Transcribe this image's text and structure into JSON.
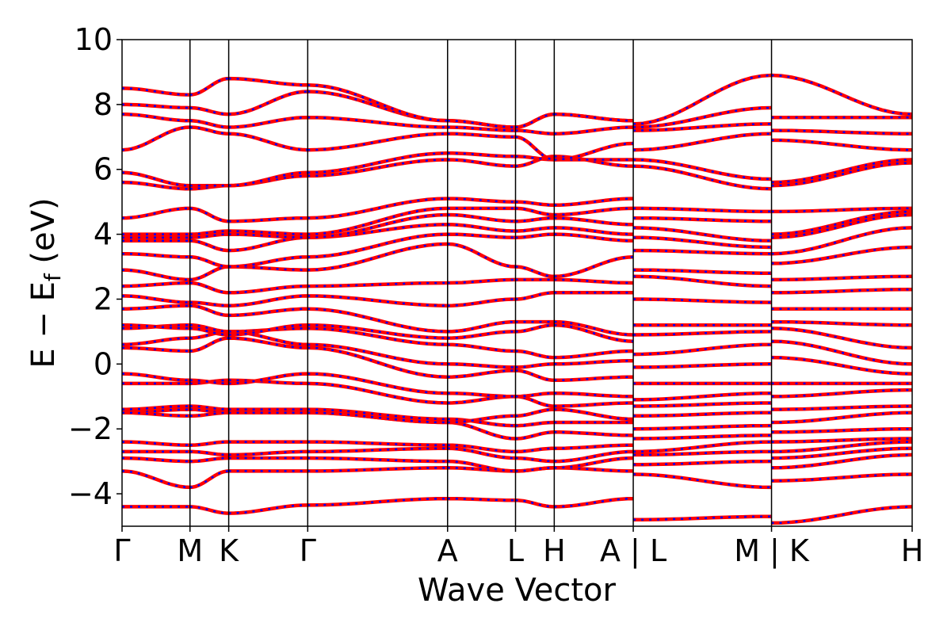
{
  "chart_data": {
    "type": "line",
    "title": "",
    "xlabel": "Wave Vector",
    "ylabel": "E − E_f (eV)",
    "ylabel_parts": {
      "prefix": "E − E",
      "subscript": "f",
      "suffix": " (eV)"
    },
    "ylim": [
      -5,
      10
    ],
    "yticks": [
      -4,
      -2,
      0,
      2,
      4,
      6,
      8,
      10
    ],
    "ytick_labels": [
      "−4",
      "−2",
      "0",
      "2",
      "4",
      "6",
      "8",
      "10"
    ],
    "grid": false,
    "legend": "none",
    "colors": {
      "spin_up": "#ff0000",
      "spin_down": "#0000ff",
      "frame": "#000000"
    },
    "k_path": {
      "positions": [
        0,
        0.86,
        1.35,
        2.35,
        4.12,
        4.98,
        5.47,
        6.47,
        8.22,
        10.0
      ],
      "labels": [
        "Γ",
        "M",
        "K",
        "Γ",
        "A",
        "L",
        "H",
        "A | L",
        "M | K",
        "H"
      ],
      "discontinuities": [
        6.47,
        8.22
      ]
    },
    "segments": [
      "Γ-M",
      "M-K",
      "K-Γ",
      "Γ-A",
      "A-L",
      "L-H",
      "H-A",
      "L-M",
      "K-H"
    ],
    "series": [
      {
        "name": "",
        "values": [
          [
            -4.4,
            -4.4
          ],
          [
            -4.4,
            -4.6
          ],
          [
            -4.6,
            -4.35
          ],
          [
            -4.35,
            -4.15
          ],
          [
            -4.15,
            -4.2
          ],
          [
            -4.2,
            -4.4
          ],
          [
            -4.4,
            -4.15
          ],
          [
            -4.8,
            -4.7
          ],
          [
            -4.9,
            -4.4
          ]
        ]
      },
      {
        "name": "",
        "values": [
          [
            -3.3,
            -3.8
          ],
          [
            -3.8,
            -3.3
          ],
          [
            -3.3,
            -3.3
          ],
          [
            -3.3,
            -3.2
          ],
          [
            -3.2,
            -3.3
          ],
          [
            -3.3,
            -3.2
          ],
          [
            -3.2,
            -3.3
          ],
          [
            -3.4,
            -3.8
          ],
          [
            -3.6,
            -3.4
          ]
        ]
      },
      {
        "name": "",
        "values": [
          [
            -2.9,
            -3.0
          ],
          [
            -3.0,
            -2.9
          ],
          [
            -2.9,
            -2.9
          ],
          [
            -2.9,
            -3.0
          ],
          [
            -3.0,
            -3.3
          ],
          [
            -3.3,
            -3.2
          ],
          [
            -3.2,
            -2.9
          ],
          [
            -3.1,
            -3.0
          ],
          [
            -3.2,
            -2.8
          ]
        ]
      },
      {
        "name": "",
        "values": [
          [
            -2.7,
            -2.7
          ],
          [
            -2.7,
            -2.8
          ],
          [
            -2.8,
            -2.7
          ],
          [
            -2.7,
            -2.6
          ],
          [
            -2.6,
            -2.9
          ],
          [
            -2.9,
            -3.0
          ],
          [
            -3.0,
            -2.7
          ],
          [
            -2.8,
            -2.7
          ],
          [
            -2.9,
            -2.6
          ]
        ]
      },
      {
        "name": "",
        "values": [
          [
            -2.4,
            -2.5
          ],
          [
            -2.5,
            -2.4
          ],
          [
            -2.4,
            -2.4
          ],
          [
            -2.4,
            -2.5
          ],
          [
            -2.5,
            -2.7
          ],
          [
            -2.7,
            -2.6
          ],
          [
            -2.6,
            -2.5
          ],
          [
            -2.7,
            -2.4
          ],
          [
            -2.7,
            -2.4
          ]
        ]
      },
      {
        "name": "",
        "values": [
          [
            -1.5,
            -1.4
          ],
          [
            -1.4,
            -1.5
          ],
          [
            -1.5,
            -1.5
          ],
          [
            -1.5,
            -1.8
          ],
          [
            -1.8,
            -2.3
          ],
          [
            -2.3,
            -2.1
          ],
          [
            -2.1,
            -2.2
          ],
          [
            -2.3,
            -2.2
          ],
          [
            -2.4,
            -2.3
          ]
        ]
      },
      {
        "name": "",
        "values": [
          [
            -1.4,
            -1.3
          ],
          [
            -1.3,
            -1.4
          ],
          [
            -1.4,
            -1.4
          ],
          [
            -1.4,
            -1.7
          ],
          [
            -1.7,
            -1.9
          ],
          [
            -1.9,
            -1.8
          ],
          [
            -1.8,
            -1.8
          ],
          [
            -2.0,
            -1.9
          ],
          [
            -2.1,
            -2.0
          ]
        ]
      },
      {
        "name": "",
        "values": [
          [
            -1.5,
            -1.6
          ],
          [
            -1.6,
            -1.5
          ],
          [
            -1.5,
            -1.5
          ],
          [
            -1.5,
            -1.8
          ],
          [
            -1.8,
            -1.6
          ],
          [
            -1.6,
            -1.4
          ],
          [
            -1.4,
            -1.7
          ],
          [
            -1.6,
            -1.5
          ],
          [
            -1.8,
            -1.5
          ]
        ]
      },
      {
        "name": "",
        "values": [
          [
            -0.6,
            -0.6
          ],
          [
            -0.6,
            -0.5
          ],
          [
            -0.5,
            -0.6
          ],
          [
            -0.6,
            -1.2
          ],
          [
            -1.2,
            -1.0
          ],
          [
            -1.0,
            -1.3
          ],
          [
            -1.3,
            -1.2
          ],
          [
            -1.3,
            -1.2
          ],
          [
            -1.4,
            -1.3
          ]
        ]
      },
      {
        "name": "",
        "values": [
          [
            -0.3,
            -0.5
          ],
          [
            -0.5,
            -0.6
          ],
          [
            -0.6,
            -0.3
          ],
          [
            -0.3,
            -0.9
          ],
          [
            -0.9,
            -1.0
          ],
          [
            -1.0,
            -0.9
          ],
          [
            -0.9,
            -1.0
          ],
          [
            -1.1,
            -0.9
          ],
          [
            -1.0,
            -0.8
          ]
        ]
      },
      {
        "name": "",
        "values": [
          [
            0.5,
            0.4
          ],
          [
            0.4,
            0.8
          ],
          [
            0.8,
            0.5
          ],
          [
            0.5,
            -0.4
          ],
          [
            -0.4,
            -0.2
          ],
          [
            -0.2,
            -0.5
          ],
          [
            -0.5,
            -0.4
          ],
          [
            -0.6,
            -0.6
          ],
          [
            -0.6,
            -0.6
          ]
        ]
      },
      {
        "name": "",
        "values": [
          [
            0.6,
            0.8
          ],
          [
            0.8,
            1.0
          ],
          [
            1.0,
            0.6
          ],
          [
            0.6,
            0.0
          ],
          [
            0.0,
            -0.1
          ],
          [
            -0.1,
            0.0
          ],
          [
            0.0,
            0.1
          ],
          [
            -0.1,
            0.0
          ],
          [
            0.2,
            -0.3
          ]
        ]
      },
      {
        "name": "",
        "values": [
          [
            1.1,
            1.2
          ],
          [
            1.2,
            1.0
          ],
          [
            1.0,
            1.1
          ],
          [
            1.1,
            0.6
          ],
          [
            0.6,
            0.4
          ],
          [
            0.4,
            0.2
          ],
          [
            0.2,
            0.4
          ],
          [
            0.3,
            0.6
          ],
          [
            0.7,
            0.0
          ]
        ]
      },
      {
        "name": "",
        "values": [
          [
            1.2,
            1.1
          ],
          [
            1.1,
            0.9
          ],
          [
            0.9,
            1.2
          ],
          [
            1.2,
            0.8
          ],
          [
            0.8,
            1.0
          ],
          [
            1.0,
            1.2
          ],
          [
            1.2,
            0.7
          ],
          [
            0.9,
            1.0
          ],
          [
            1.1,
            0.5
          ]
        ]
      },
      {
        "name": "",
        "values": [
          [
            1.7,
            1.8
          ],
          [
            1.8,
            1.5
          ],
          [
            1.5,
            1.7
          ],
          [
            1.7,
            1.0
          ],
          [
            1.0,
            1.3
          ],
          [
            1.3,
            1.3
          ],
          [
            1.3,
            0.9
          ],
          [
            1.2,
            1.2
          ],
          [
            1.3,
            1.2
          ]
        ]
      },
      {
        "name": "",
        "values": [
          [
            2.1,
            1.9
          ],
          [
            1.9,
            1.8
          ],
          [
            1.8,
            2.1
          ],
          [
            2.1,
            1.8
          ],
          [
            1.8,
            2.0
          ],
          [
            2.0,
            2.2
          ],
          [
            2.2,
            2.2
          ],
          [
            2.0,
            1.9
          ],
          [
            1.7,
            1.7
          ]
        ]
      },
      {
        "name": "",
        "values": [
          [
            2.4,
            2.5
          ],
          [
            2.5,
            2.2
          ],
          [
            2.2,
            2.4
          ],
          [
            2.4,
            2.5
          ],
          [
            2.5,
            2.6
          ],
          [
            2.6,
            2.6
          ],
          [
            2.6,
            2.5
          ],
          [
            2.7,
            2.4
          ],
          [
            2.2,
            2.3
          ]
        ]
      },
      {
        "name": "",
        "values": [
          [
            2.9,
            2.6
          ],
          [
            2.6,
            3.0
          ],
          [
            3.0,
            2.9
          ],
          [
            2.9,
            3.7
          ],
          [
            3.7,
            3.0
          ],
          [
            3.0,
            2.7
          ],
          [
            2.7,
            3.3
          ],
          [
            2.9,
            2.8
          ],
          [
            2.6,
            2.7
          ]
        ]
      },
      {
        "name": "",
        "values": [
          [
            3.4,
            3.3
          ],
          [
            3.3,
            3.0
          ],
          [
            3.0,
            3.3
          ],
          [
            3.3,
            4.0
          ],
          [
            4.0,
            3.9
          ],
          [
            3.9,
            4.0
          ],
          [
            4.0,
            3.8
          ],
          [
            3.5,
            3.4
          ],
          [
            3.1,
            3.6
          ]
        ]
      },
      {
        "name": "",
        "values": [
          [
            3.8,
            3.8
          ],
          [
            3.8,
            3.5
          ],
          [
            3.5,
            3.9
          ],
          [
            3.9,
            4.3
          ],
          [
            4.3,
            4.1
          ],
          [
            4.1,
            4.2
          ],
          [
            4.2,
            4.0
          ],
          [
            3.9,
            3.6
          ],
          [
            3.4,
            4.2
          ]
        ]
      },
      {
        "name": "",
        "values": [
          [
            3.9,
            3.9
          ],
          [
            3.9,
            4.0
          ],
          [
            4.0,
            3.9
          ],
          [
            3.9,
            4.6
          ],
          [
            4.6,
            4.4
          ],
          [
            4.4,
            4.5
          ],
          [
            4.5,
            4.3
          ],
          [
            4.2,
            3.8
          ],
          [
            3.9,
            4.6
          ]
        ]
      },
      {
        "name": "",
        "values": [
          [
            4.0,
            4.0
          ],
          [
            4.0,
            4.1
          ],
          [
            4.1,
            4.0
          ],
          [
            4.0,
            4.8
          ],
          [
            4.8,
            4.8
          ],
          [
            4.8,
            4.6
          ],
          [
            4.6,
            4.8
          ],
          [
            4.5,
            4.4
          ],
          [
            4.0,
            4.7
          ]
        ]
      },
      {
        "name": "",
        "values": [
          [
            4.5,
            4.8
          ],
          [
            4.8,
            4.4
          ],
          [
            4.4,
            4.5
          ],
          [
            4.5,
            5.1
          ],
          [
            5.1,
            5.0
          ],
          [
            5.0,
            4.9
          ],
          [
            4.9,
            5.1
          ],
          [
            4.8,
            4.7
          ],
          [
            4.7,
            4.8
          ]
        ]
      },
      {
        "name": "",
        "values": [
          [
            5.6,
            5.4
          ],
          [
            5.4,
            5.5
          ],
          [
            5.5,
            5.8
          ],
          [
            5.8,
            6.3
          ],
          [
            6.3,
            6.1
          ],
          [
            6.1,
            6.4
          ],
          [
            6.4,
            6.1
          ],
          [
            6.1,
            5.4
          ],
          [
            5.5,
            6.2
          ]
        ]
      },
      {
        "name": "",
        "values": [
          [
            5.9,
            5.5
          ],
          [
            5.5,
            5.5
          ],
          [
            5.5,
            5.9
          ],
          [
            5.9,
            6.5
          ],
          [
            6.5,
            6.4
          ],
          [
            6.4,
            6.3
          ],
          [
            6.3,
            6.3
          ],
          [
            6.3,
            5.7
          ],
          [
            5.6,
            6.3
          ]
        ]
      },
      {
        "name": "",
        "values": [
          [
            6.6,
            7.3
          ],
          [
            7.3,
            7.1
          ],
          [
            7.1,
            6.6
          ],
          [
            6.6,
            7.1
          ],
          [
            7.1,
            7.0
          ],
          [
            7.0,
            6.3
          ],
          [
            6.3,
            6.8
          ],
          [
            6.6,
            7.1
          ],
          [
            6.9,
            6.6
          ]
        ]
      },
      {
        "name": "",
        "values": [
          [
            7.7,
            7.5
          ],
          [
            7.5,
            7.3
          ],
          [
            7.3,
            7.6
          ],
          [
            7.6,
            7.3
          ],
          [
            7.3,
            7.2
          ],
          [
            7.2,
            7.1
          ],
          [
            7.1,
            7.3
          ],
          [
            7.2,
            7.4
          ],
          [
            7.2,
            7.1
          ]
        ]
      },
      {
        "name": "",
        "values": [
          [
            8.0,
            7.9
          ],
          [
            7.9,
            7.7
          ],
          [
            7.7,
            8.4
          ],
          [
            8.4,
            7.5
          ],
          [
            7.5,
            7.3
          ],
          [
            7.3,
            7.7
          ],
          [
            7.7,
            7.5
          ],
          [
            7.3,
            7.9
          ],
          [
            7.6,
            7.6
          ]
        ]
      },
      {
        "name": "",
        "values": [
          [
            8.5,
            8.3
          ],
          [
            8.3,
            8.8
          ],
          [
            8.8,
            8.6
          ],
          [
            8.6,
            7.5
          ],
          [
            7.5,
            7.3
          ],
          [
            7.3,
            7.7
          ],
          [
            7.7,
            7.5
          ],
          [
            7.4,
            8.9
          ],
          [
            8.9,
            7.7
          ]
        ]
      }
    ]
  }
}
